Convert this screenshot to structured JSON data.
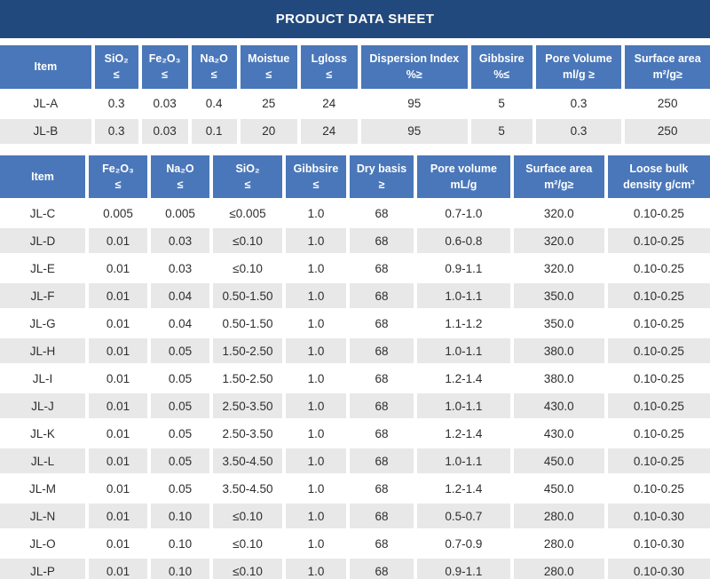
{
  "title": "PRODUCT DATA SHEET",
  "accent_colors": {
    "title_bar": "#21497D",
    "header_cell": "#4A77B9",
    "row_stripe": "#E8E8E8"
  },
  "table1": {
    "columns": [
      "Item",
      "SiO₂\n≤",
      "Fe₂O₃\n≤",
      "Na₂O\n≤",
      "Moistue\n≤",
      "Lgloss\n≤",
      "Dispersion Index\n%≥",
      "Gibbsire\n%≤",
      "Pore Volume\nml/g ≥",
      "Surface area\nm²/g≥"
    ],
    "rows": [
      [
        "JL-A",
        "0.3",
        "0.03",
        "0.4",
        "25",
        "24",
        "95",
        "5",
        "0.3",
        "250"
      ],
      [
        "JL-B",
        "0.3",
        "0.03",
        "0.1",
        "20",
        "24",
        "95",
        "5",
        "0.3",
        "250"
      ]
    ]
  },
  "table2": {
    "columns": [
      "Item",
      "Fe₂O₃\n≤",
      "Na₂O\n≤",
      "SiO₂\n≤",
      "Gibbsire\n≤",
      "Dry basis\n≥",
      "Pore volume\nmL/g",
      "Surface area\nm²/g≥",
      "Loose bulk\ndensity g/cm³"
    ],
    "rows": [
      [
        "JL-C",
        "0.005",
        "0.005",
        "≤0.005",
        "1.0",
        "68",
        "0.7-1.0",
        "320.0",
        "0.10-0.25"
      ],
      [
        "JL-D",
        "0.01",
        "0.03",
        "≤0.10",
        "1.0",
        "68",
        "0.6-0.8",
        "320.0",
        "0.10-0.25"
      ],
      [
        "JL-E",
        "0.01",
        "0.03",
        "≤0.10",
        "1.0",
        "68",
        "0.9-1.1",
        "320.0",
        "0.10-0.25"
      ],
      [
        "JL-F",
        "0.01",
        "0.04",
        "0.50-1.50",
        "1.0",
        "68",
        "1.0-1.1",
        "350.0",
        "0.10-0.25"
      ],
      [
        "JL-G",
        "0.01",
        "0.04",
        "0.50-1.50",
        "1.0",
        "68",
        "1.1-1.2",
        "350.0",
        "0.10-0.25"
      ],
      [
        "JL-H",
        "0.01",
        "0.05",
        "1.50-2.50",
        "1.0",
        "68",
        "1.0-1.1",
        "380.0",
        "0.10-0.25"
      ],
      [
        "JL-I",
        "0.01",
        "0.05",
        "1.50-2.50",
        "1.0",
        "68",
        "1.2-1.4",
        "380.0",
        "0.10-0.25"
      ],
      [
        "JL-J",
        "0.01",
        "0.05",
        "2.50-3.50",
        "1.0",
        "68",
        "1.0-1.1",
        "430.0",
        "0.10-0.25"
      ],
      [
        "JL-K",
        "0.01",
        "0.05",
        "2.50-3.50",
        "1.0",
        "68",
        "1.2-1.4",
        "430.0",
        "0.10-0.25"
      ],
      [
        "JL-L",
        "0.01",
        "0.05",
        "3.50-4.50",
        "1.0",
        "68",
        "1.0-1.1",
        "450.0",
        "0.10-0.25"
      ],
      [
        "JL-M",
        "0.01",
        "0.05",
        "3.50-4.50",
        "1.0",
        "68",
        "1.2-1.4",
        "450.0",
        "0.10-0.25"
      ],
      [
        "JL-N",
        "0.01",
        "0.10",
        "≤0.10",
        "1.0",
        "68",
        "0.5-0.7",
        "280.0",
        "0.10-0.30"
      ],
      [
        "JL-O",
        "0.01",
        "0.10",
        "≤0.10",
        "1.0",
        "68",
        "0.7-0.9",
        "280.0",
        "0.10-0.30"
      ],
      [
        "JL-P",
        "0.01",
        "0.10",
        "≤0.10",
        "1.0",
        "68",
        "0.9-1.1",
        "280.0",
        "0.10-0.30"
      ]
    ]
  }
}
